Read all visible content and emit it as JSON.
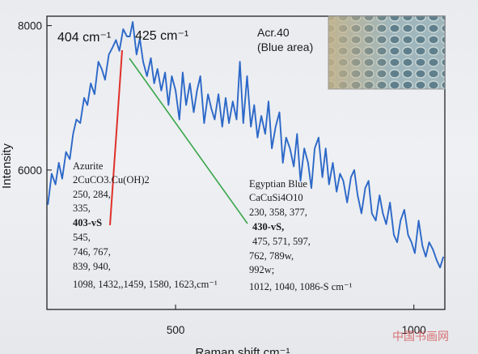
{
  "chart_data": {
    "type": "line",
    "xlabel": "Raman shift cm⁻¹",
    "ylabel": "Intensity",
    "xticks": [
      500,
      1000
    ],
    "yticks": [
      6000,
      8000
    ],
    "xlim": [
      230,
      1065
    ],
    "ylim": [
      4070,
      8130
    ],
    "grid": false,
    "series": [
      {
        "color": "#2c68c8",
        "x": [
          232,
          240,
          248,
          255,
          262,
          270,
          278,
          285,
          292,
          300,
          308,
          315,
          322,
          330,
          338,
          345,
          352,
          360,
          368,
          375,
          382,
          390,
          398,
          404,
          410,
          418,
          425,
          432,
          440,
          448,
          455,
          462,
          470,
          478,
          485,
          492,
          500,
          508,
          515,
          522,
          530,
          538,
          545,
          552,
          560,
          568,
          575,
          582,
          590,
          598,
          605,
          612,
          620,
          628,
          635,
          642,
          650,
          658,
          665,
          672,
          680,
          688,
          695,
          702,
          710,
          718,
          725,
          732,
          740,
          748,
          755,
          762,
          770,
          778,
          785,
          792,
          800,
          808,
          815,
          822,
          830,
          838,
          845,
          852,
          860,
          868,
          875,
          882,
          890,
          898,
          905,
          912,
          920,
          928,
          935,
          942,
          950,
          958,
          965,
          972,
          980,
          988,
          995,
          1002,
          1010,
          1018,
          1025,
          1032,
          1040,
          1048,
          1055,
          1062
        ],
        "values": [
          5520,
          5950,
          5800,
          6100,
          5880,
          6250,
          6150,
          6500,
          6700,
          6650,
          7000,
          6900,
          7200,
          7050,
          7500,
          7400,
          7250,
          7600,
          7700,
          7800,
          7650,
          7950,
          7850,
          7850,
          8050,
          7600,
          7820,
          7500,
          7300,
          7550,
          7200,
          7400,
          7100,
          7350,
          6900,
          7300,
          7100,
          6700,
          7350,
          6900,
          7200,
          6800,
          7100,
          7300,
          6650,
          7050,
          6850,
          6700,
          7050,
          6600,
          7000,
          6650,
          6950,
          6700,
          7500,
          6650,
          7300,
          6600,
          6900,
          6450,
          6750,
          6500,
          6950,
          6300,
          6600,
          6800,
          6100,
          6450,
          6300,
          6050,
          6500,
          5850,
          6300,
          6100,
          5750,
          6300,
          6450,
          5900,
          6300,
          5800,
          6100,
          5700,
          5950,
          5850,
          5550,
          5900,
          6000,
          5650,
          5400,
          5750,
          5850,
          5400,
          5300,
          5650,
          5400,
          5250,
          5550,
          5100,
          5000,
          5300,
          5450,
          5100,
          5000,
          4850,
          5300,
          4950,
          4800,
          5000,
          4900,
          4750,
          4650,
          4800
        ]
      }
    ],
    "annotations": [
      {
        "text": "404 cm⁻¹",
        "x": 404
      },
      {
        "text": "425 cm⁻¹",
        "x": 425
      }
    ]
  },
  "sample": {
    "line1": "Acr.40",
    "line2": "(Blue area)"
  },
  "azurite": {
    "title": "Azurite",
    "lines": [
      {
        "text": "2CuCO3.Cu(OH)2",
        "bold": false
      },
      {
        "text": "250, 284,",
        "bold": false
      },
      {
        "text": "335,",
        "bold": false
      },
      {
        "text": "403-vS",
        "bold": true
      },
      {
        "text": "545,",
        "bold": false
      },
      {
        "text": "746, 767,",
        "bold": false
      },
      {
        "text": "839, 940,",
        "bold": false
      },
      {
        "text": "1098, 1432,,1459, 1580, 1623,cm⁻¹",
        "bold": false
      }
    ]
  },
  "egyptian_blue": {
    "title": "Egyptian Blue",
    "lines": [
      {
        "text": "CaCuSi4O10",
        "bold": false
      },
      {
        "text": "230, 358, 377,",
        "bold": false
      },
      {
        "text": "430-vS,",
        "bold": true
      },
      {
        "text": "475, 571, 597,",
        "bold": false
      },
      {
        "text": "762, 789w,",
        "bold": false
      },
      {
        "text": "992w;",
        "bold": false
      },
      {
        "text": "1012, 1040, 1086-S cm⁻¹",
        "bold": false
      }
    ]
  },
  "colors": {
    "spectrum": "#2c68c8",
    "azurite_pointer": "#e0302a",
    "egyptian_blue_pointer": "#39a64a"
  },
  "watermark": "中国书画网"
}
